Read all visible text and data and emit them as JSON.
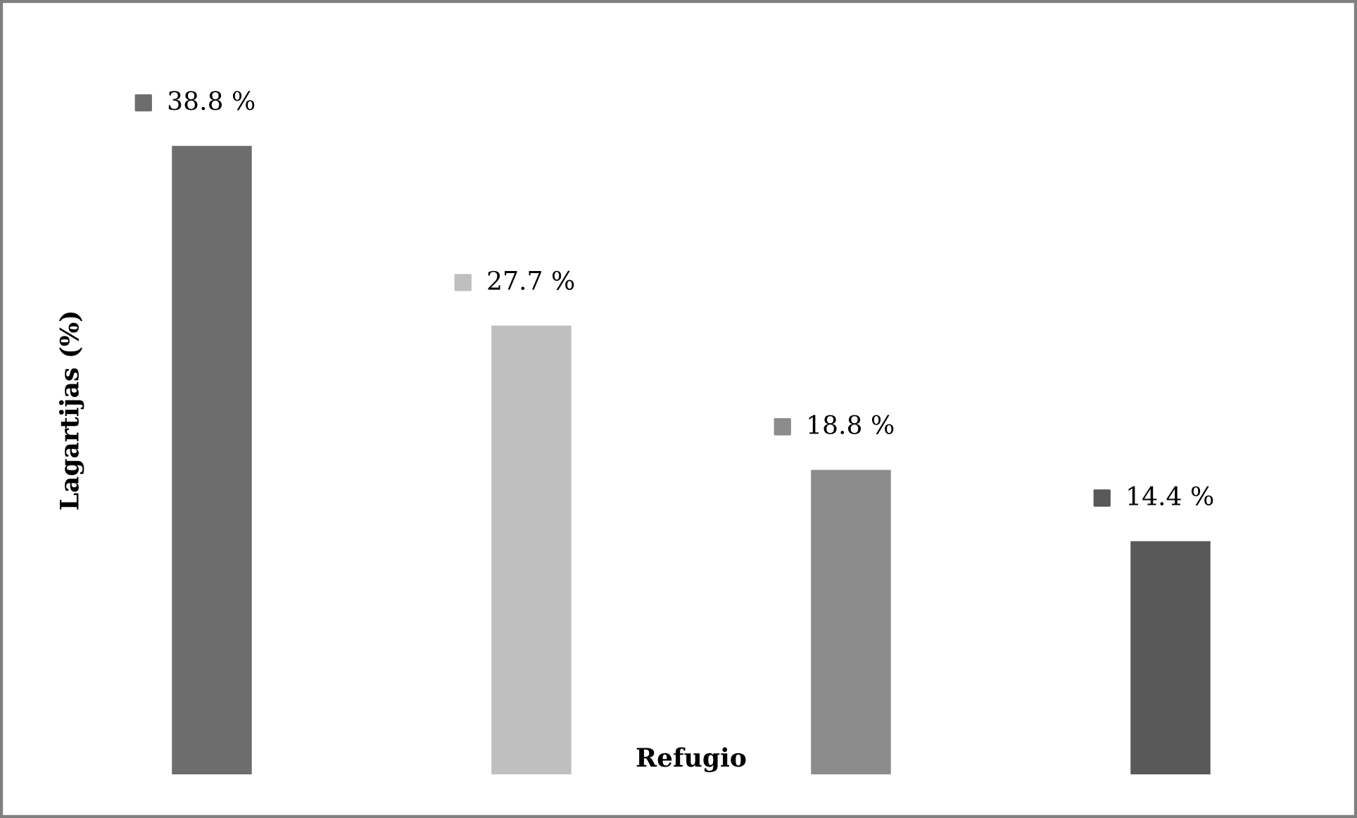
{
  "chart_data": {
    "type": "bar",
    "xlabel": "Refugio",
    "ylabel": "Lagartijas (%)",
    "categories": [
      null,
      null,
      null,
      null
    ],
    "values": [
      38.8,
      27.7,
      18.8,
      14.4
    ],
    "colors": [
      "#6d6d6d",
      "#bfbfbf",
      "#8c8c8c",
      "#595959"
    ],
    "value_labels": [
      "38.8 %",
      "27.7 %",
      "18.8 %",
      "14.4 %"
    ],
    "grid": false,
    "legend": false
  }
}
